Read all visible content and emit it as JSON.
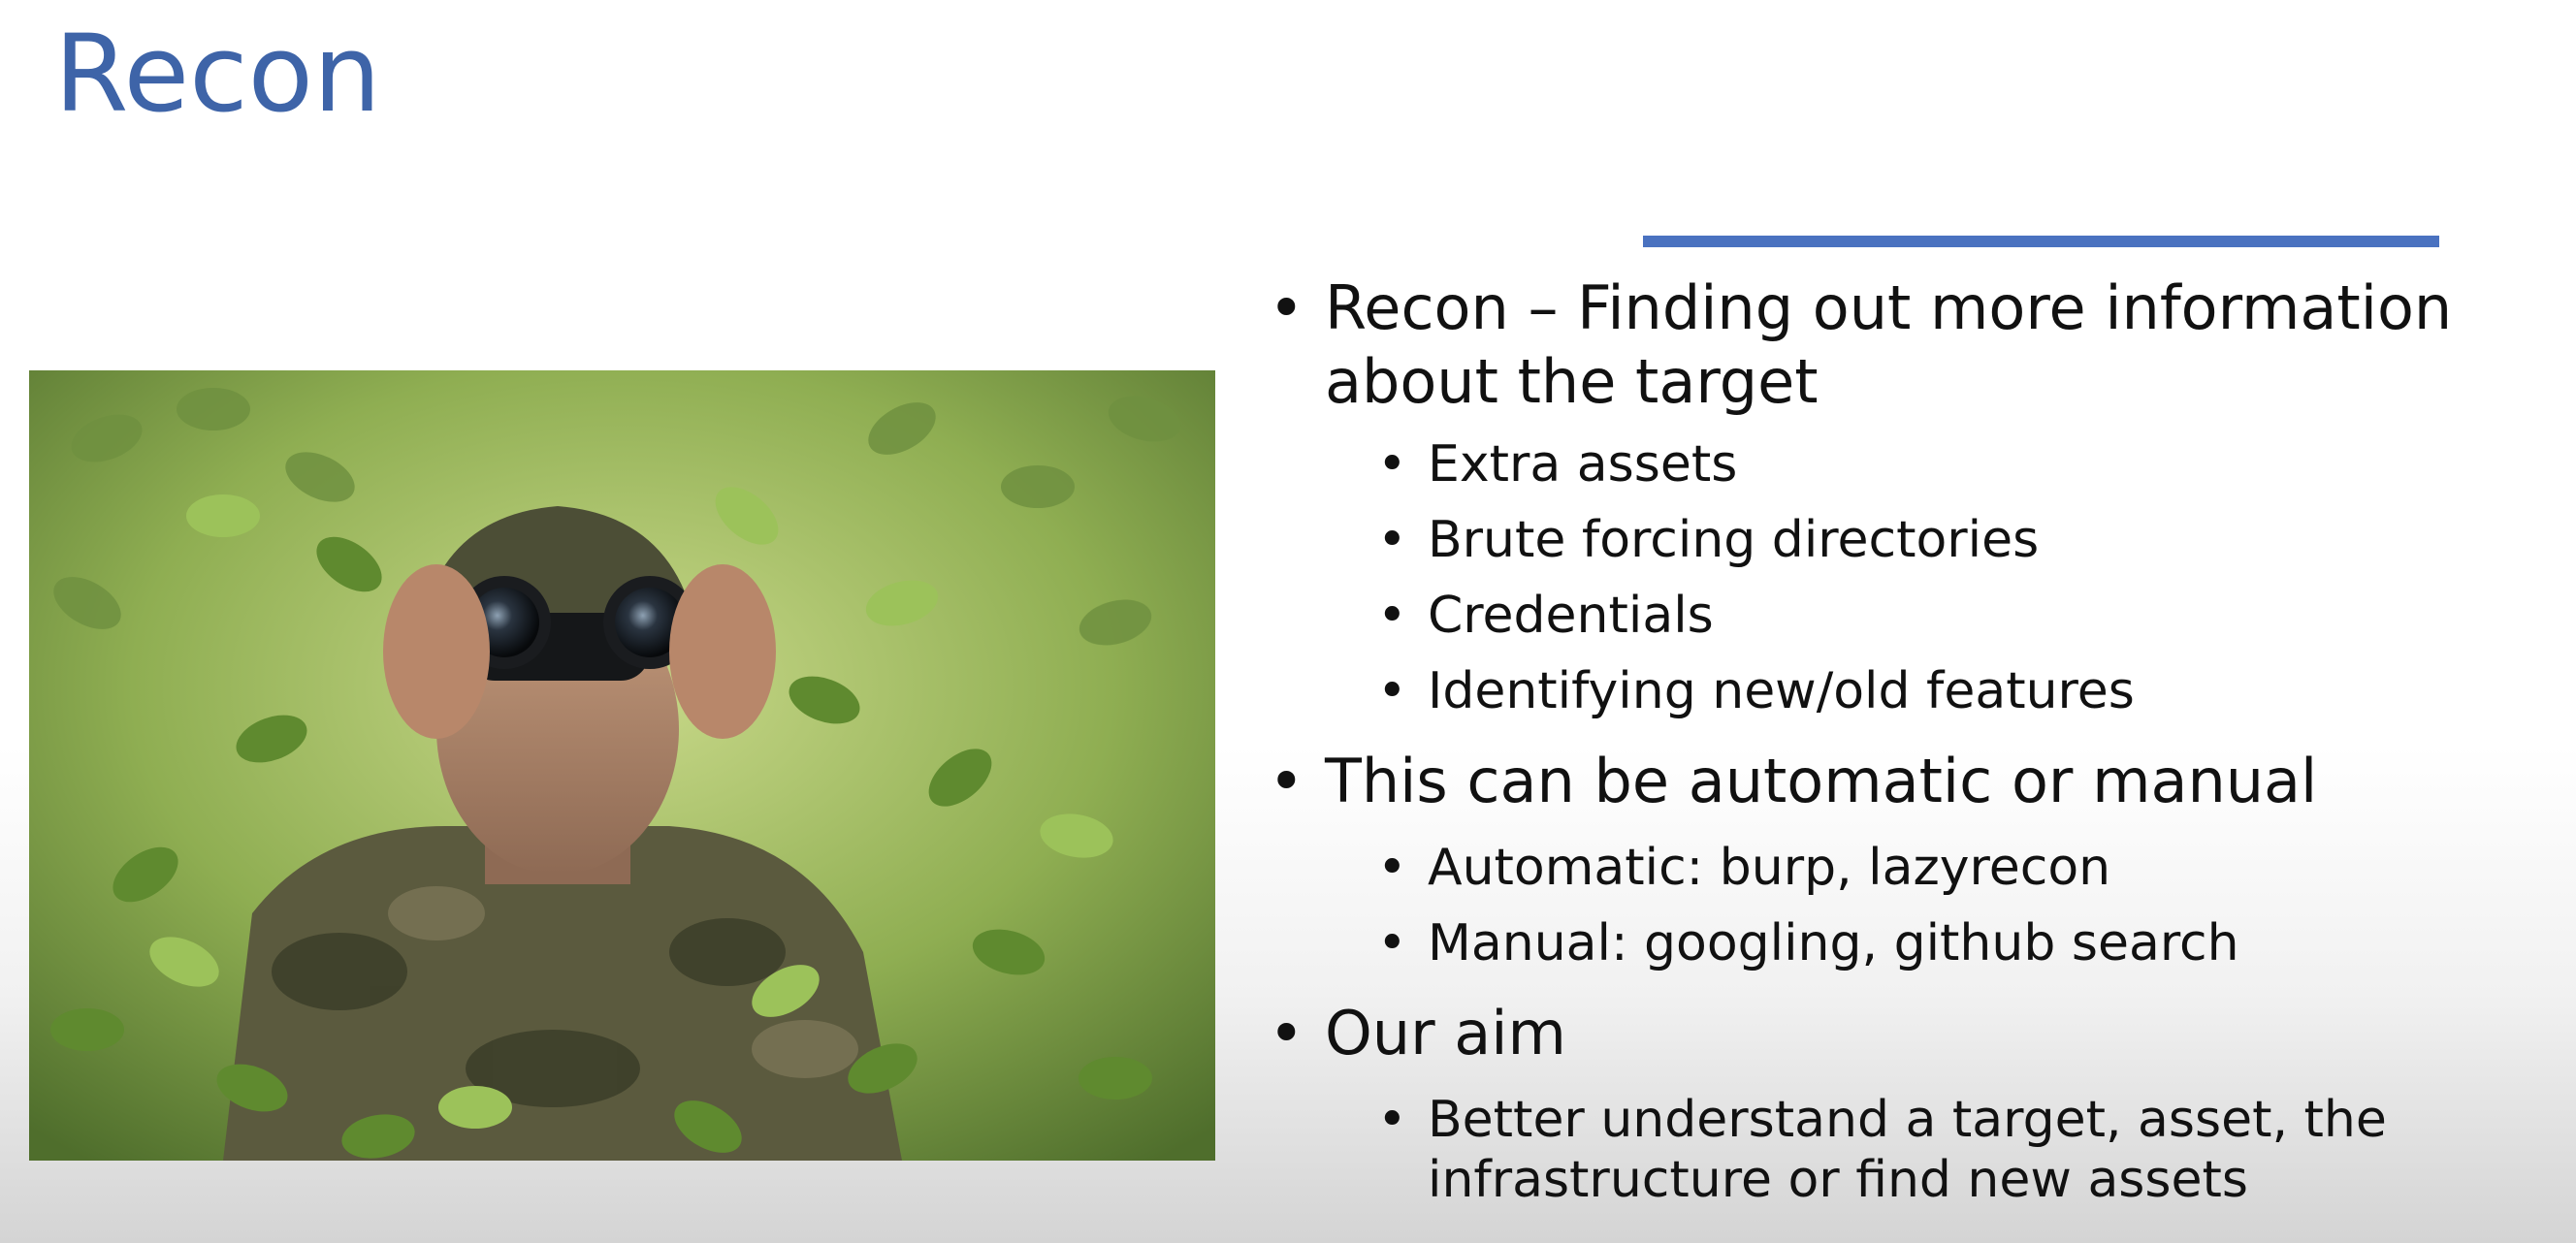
{
  "slide": {
    "title": "Recon",
    "image": {
      "icon": "binoculars-soldier-photo"
    },
    "bullets": [
      {
        "text": "Recon – Finding out more information about the target",
        "sub": [
          "Extra assets",
          "Brute forcing directories",
          "Credentials",
          "Identifying new/old features"
        ]
      },
      {
        "text": "This can be automatic or manual",
        "sub": [
          "Automatic: burp, lazyrecon",
          "Manual: googling, github search"
        ]
      },
      {
        "text": "Our aim",
        "sub": [
          "Better understand a target, asset, the infrastructure or find new assets"
        ]
      }
    ]
  }
}
